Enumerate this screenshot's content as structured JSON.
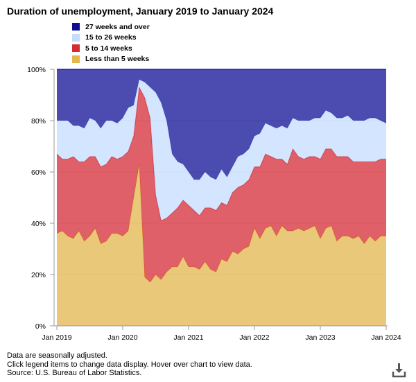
{
  "title": "Duration of unemployment, January 2019 to January 2024",
  "legend": [
    {
      "label": "27 weeks and over",
      "color": "#0f0f96"
    },
    {
      "label": "15 to 26 weeks",
      "color": "#c5dcff"
    },
    {
      "label": "5 to 14 weeks",
      "color": "#d42b35"
    },
    {
      "label": "Less than 5 weeks",
      "color": "#e2b74c"
    }
  ],
  "footnotes": [
    "Data are seasonally adjusted.",
    "Click legend items to change data display. Hover over chart to view data.",
    "Source: U.S. Bureau of Labor Statistics."
  ],
  "download_icon": "download-icon",
  "chart_data": {
    "type": "area",
    "stacked": true,
    "title": "Duration of unemployment, January 2019 to January 2024",
    "xlabel": "",
    "ylabel": "",
    "ylim": [
      0,
      100
    ],
    "y_ticks": [
      "0%",
      "20%",
      "40%",
      "60%",
      "80%",
      "100%"
    ],
    "x_ticks": [
      "Jan 2019",
      "Jan 2020",
      "Jan 2021",
      "Jan 2022",
      "Jan 2023",
      "Jan 2024"
    ],
    "x": [
      "2019-01",
      "2019-02",
      "2019-03",
      "2019-04",
      "2019-05",
      "2019-06",
      "2019-07",
      "2019-08",
      "2019-09",
      "2019-10",
      "2019-11",
      "2019-12",
      "2020-01",
      "2020-02",
      "2020-03",
      "2020-04",
      "2020-05",
      "2020-06",
      "2020-07",
      "2020-08",
      "2020-09",
      "2020-10",
      "2020-11",
      "2020-12",
      "2021-01",
      "2021-02",
      "2021-03",
      "2021-04",
      "2021-05",
      "2021-06",
      "2021-07",
      "2021-08",
      "2021-09",
      "2021-10",
      "2021-11",
      "2021-12",
      "2022-01",
      "2022-02",
      "2022-03",
      "2022-04",
      "2022-05",
      "2022-06",
      "2022-07",
      "2022-08",
      "2022-09",
      "2022-10",
      "2022-11",
      "2022-12",
      "2023-01",
      "2023-02",
      "2023-03",
      "2023-04",
      "2023-05",
      "2023-06",
      "2023-07",
      "2023-08",
      "2023-09",
      "2023-10",
      "2023-11",
      "2023-12",
      "2024-01"
    ],
    "series": [
      {
        "name": "Less than 5 weeks",
        "color": "#e2b74c",
        "values": [
          36,
          37,
          35,
          34,
          37,
          33,
          35,
          38,
          32,
          33,
          36,
          36,
          35,
          37,
          50,
          63,
          19,
          17,
          20,
          18,
          21,
          23,
          23,
          27,
          23,
          23,
          22,
          25,
          22,
          21,
          26,
          25,
          29,
          28,
          30,
          31,
          38,
          34,
          38,
          39,
          35,
          39,
          37,
          37,
          38,
          37,
          38,
          39,
          34,
          38,
          39,
          33,
          35,
          35,
          34,
          35,
          32,
          35,
          33,
          35,
          35
        ]
      },
      {
        "name": "5 to 14 weeks",
        "color": "#d42b35",
        "values": [
          31,
          28,
          30,
          32,
          27,
          31,
          31,
          28,
          30,
          30,
          30,
          29,
          31,
          31,
          24,
          30,
          70,
          64,
          31,
          23,
          21,
          21,
          23,
          22,
          24,
          22,
          21,
          21,
          24,
          24,
          22,
          22,
          23,
          26,
          25,
          26,
          24,
          28,
          29,
          27,
          30,
          26,
          26,
          32,
          28,
          28,
          28,
          27,
          31,
          31,
          30,
          33,
          31,
          31,
          30,
          29,
          32,
          29,
          31,
          30,
          30
        ]
      },
      {
        "name": "15 to 26 weeks",
        "color": "#c5dcff",
        "values": [
          13,
          15,
          15,
          12,
          14,
          13,
          15,
          14,
          15,
          17,
          14,
          14,
          15,
          17,
          12,
          3,
          6,
          12,
          40,
          46,
          38,
          23,
          18,
          14,
          13,
          12,
          14,
          14,
          12,
          12,
          13,
          11,
          10,
          12,
          12,
          12,
          12,
          13,
          12,
          12,
          12,
          13,
          14,
          12,
          14,
          15,
          14,
          15,
          16,
          15,
          14,
          15,
          15,
          16,
          16,
          16,
          16,
          17,
          17,
          15,
          14
        ]
      },
      {
        "name": "27 weeks and over",
        "color": "#0f0f96",
        "values": [
          20,
          20,
          20,
          22,
          22,
          23,
          19,
          20,
          23,
          20,
          20,
          21,
          19,
          15,
          14,
          4,
          5,
          7,
          9,
          13,
          20,
          33,
          36,
          37,
          40,
          43,
          43,
          40,
          42,
          43,
          39,
          42,
          38,
          34,
          33,
          31,
          26,
          25,
          21,
          22,
          23,
          22,
          23,
          19,
          20,
          20,
          20,
          19,
          19,
          16,
          17,
          19,
          19,
          18,
          20,
          20,
          20,
          19,
          19,
          20,
          21
        ]
      }
    ]
  }
}
